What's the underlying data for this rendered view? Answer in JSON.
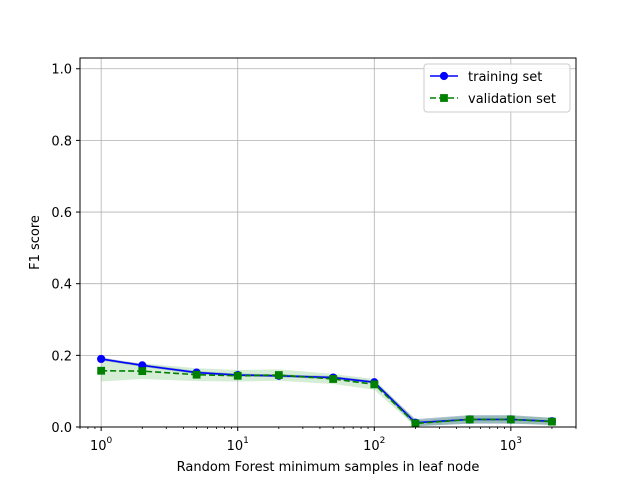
{
  "chart_data": {
    "type": "line",
    "title": "",
    "xlabel": "Random Forest minimum samples in leaf node",
    "ylabel": "F1 score",
    "xscale": "log",
    "xlim": [
      0.7,
      3000
    ],
    "ylim": [
      0.0,
      1.03
    ],
    "grid": true,
    "legend_position": "top-right",
    "x_ticks": [
      {
        "value": 1,
        "base": "10",
        "exp": "0"
      },
      {
        "value": 10,
        "base": "10",
        "exp": "1"
      },
      {
        "value": 100,
        "base": "10",
        "exp": "2"
      },
      {
        "value": 1000,
        "base": "10",
        "exp": "3"
      }
    ],
    "y_ticks": [
      {
        "value": 0.0,
        "label": "0.0"
      },
      {
        "value": 0.2,
        "label": "0.2"
      },
      {
        "value": 0.4,
        "label": "0.4"
      },
      {
        "value": 0.6,
        "label": "0.6"
      },
      {
        "value": 0.8,
        "label": "0.8"
      },
      {
        "value": 1.0,
        "label": "1.0"
      }
    ],
    "x": [
      1,
      2,
      5,
      10,
      20,
      50,
      100,
      200,
      500,
      1000,
      2000
    ],
    "series": [
      {
        "name": "training set",
        "color": "#0000ff",
        "marker": "circle",
        "linestyle": "solid",
        "values": [
          0.19,
          0.172,
          0.152,
          0.145,
          0.143,
          0.138,
          0.125,
          0.012,
          0.021,
          0.021,
          0.016
        ],
        "band_lower": [
          0.186,
          0.168,
          0.148,
          0.141,
          0.139,
          0.134,
          0.121,
          0.002,
          0.009,
          0.009,
          0.006
        ],
        "band_upper": [
          0.194,
          0.176,
          0.156,
          0.149,
          0.147,
          0.142,
          0.129,
          0.022,
          0.033,
          0.033,
          0.026
        ],
        "band_color": "#1f4e8c"
      },
      {
        "name": "validation set",
        "color": "#008000",
        "marker": "square",
        "linestyle": "dashed",
        "values": [
          0.157,
          0.156,
          0.146,
          0.143,
          0.145,
          0.134,
          0.119,
          0.01,
          0.021,
          0.021,
          0.015
        ],
        "band_lower": [
          0.127,
          0.134,
          0.128,
          0.127,
          0.129,
          0.12,
          0.104,
          0.002,
          0.011,
          0.011,
          0.005
        ],
        "band_upper": [
          0.187,
          0.178,
          0.164,
          0.159,
          0.161,
          0.148,
          0.134,
          0.018,
          0.031,
          0.031,
          0.025
        ],
        "band_color": "#2ca02c"
      }
    ]
  }
}
